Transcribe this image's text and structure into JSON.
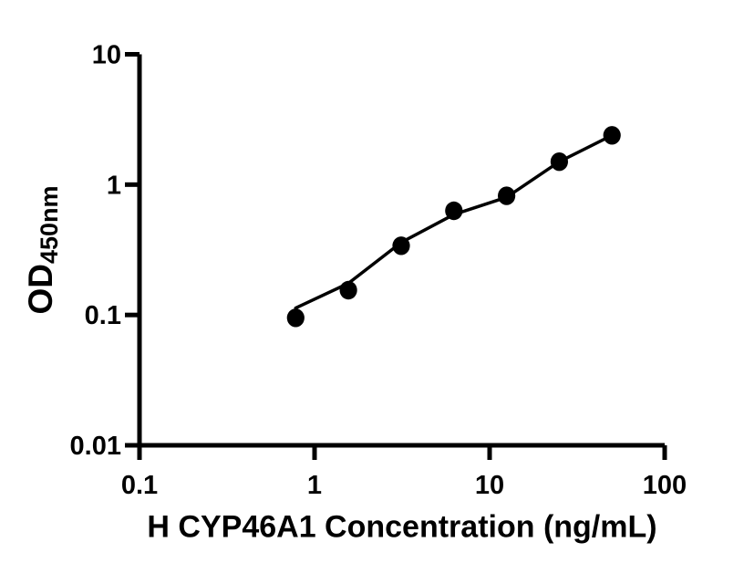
{
  "figure": {
    "background_color": "#ffffff",
    "ink_color": "#000000"
  },
  "chart_data": {
    "type": "scatter",
    "title": "",
    "xlabel": "H CYP46A1 Concentration (ng/mL)",
    "ylabel_main": "OD",
    "ylabel_sub": "450nm",
    "x_scale": "log10",
    "y_scale": "log10",
    "xlim": [
      0.1,
      100
    ],
    "ylim": [
      0.01,
      10
    ],
    "x_ticks": [
      0.1,
      1,
      10,
      100
    ],
    "x_tick_labels": [
      "0.1",
      "1",
      "10",
      "100"
    ],
    "y_ticks": [
      10,
      1,
      0.1,
      0.01
    ],
    "y_tick_labels": [
      "10",
      "1",
      "0.1",
      "0.01"
    ],
    "grid": false,
    "legend": false,
    "axis_color": "#000000",
    "marker_color": "#000000",
    "series": [
      {
        "name": "standard curve fit line",
        "type": "line",
        "color": "#000000",
        "x": [
          0.78,
          1.56,
          3.125,
          6.25,
          12.5,
          25,
          50
        ],
        "y": [
          0.113,
          0.175,
          0.36,
          0.59,
          0.8,
          1.5,
          2.39
        ]
      },
      {
        "name": "standard data points",
        "type": "scatter",
        "marker": "filled-circle",
        "color": "#000000",
        "x": [
          0.78,
          1.56,
          3.125,
          6.25,
          12.5,
          25,
          50
        ],
        "y": [
          0.095,
          0.155,
          0.34,
          0.63,
          0.82,
          1.5,
          2.39
        ]
      }
    ]
  }
}
